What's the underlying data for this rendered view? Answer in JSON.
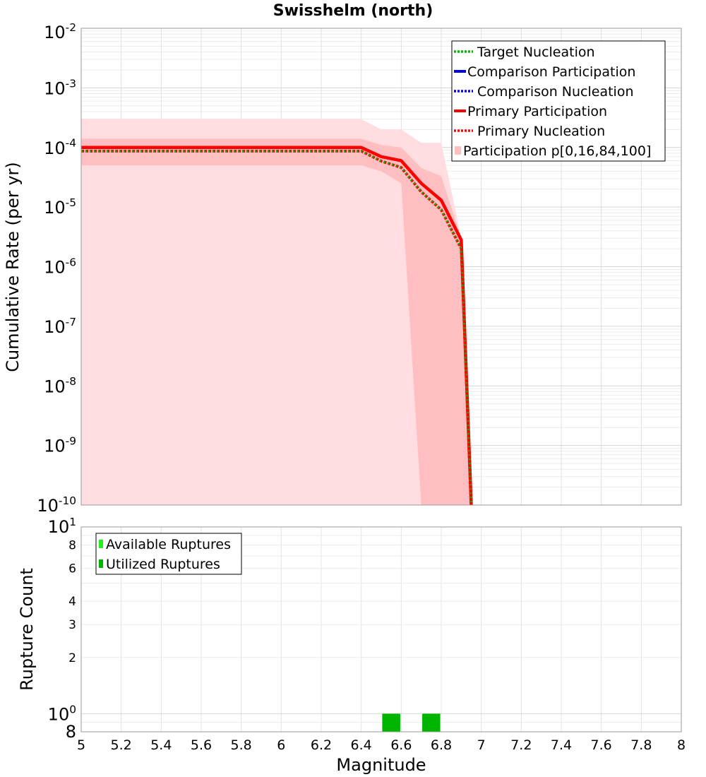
{
  "chart_data": [
    {
      "type": "line",
      "title": "Swisshelm (north)",
      "xlabel": "",
      "ylabel": "Cumulative Rate (per yr)",
      "xlim": [
        5,
        8
      ],
      "ylim": [
        1e-10,
        0.01
      ],
      "yscale": "log",
      "grid": true,
      "legend_position": "top-right",
      "y_tick_labels": [
        {
          "base": "10",
          "exp": "-2"
        },
        {
          "base": "10",
          "exp": "-3"
        },
        {
          "base": "10",
          "exp": "-4"
        },
        {
          "base": "10",
          "exp": "-5"
        },
        {
          "base": "10",
          "exp": "-6"
        },
        {
          "base": "10",
          "exp": "-7"
        },
        {
          "base": "10",
          "exp": "-8"
        },
        {
          "base": "10",
          "exp": "-9"
        },
        {
          "base": "10",
          "exp": "-10"
        }
      ],
      "legend": [
        {
          "label": "Target Nucleation",
          "color": "#00bb00",
          "style": "dotted"
        },
        {
          "label": "Comparison Participation",
          "color": "#0000ee",
          "style": "solid"
        },
        {
          "label": "Comparison Nucleation",
          "color": "#0000ee",
          "style": "dotted"
        },
        {
          "label": "Primary Participation",
          "color": "#ff0000",
          "style": "solid"
        },
        {
          "label": "Primary Nucleation",
          "color": "#ff0000",
          "style": "dotted"
        },
        {
          "label": "Participation p[0,16,84,100]",
          "color": "#ffc0c0",
          "style": "band"
        }
      ],
      "series": [
        {
          "name": "Primary Participation",
          "color": "#ff0000",
          "x": [
            5.0,
            6.4,
            6.5,
            6.6,
            6.7,
            6.8,
            6.9,
            6.95
          ],
          "y": [
            0.0001,
            0.0001,
            7e-05,
            6e-05,
            2.5e-05,
            1.3e-05,
            2.8e-06,
            1e-10
          ]
        },
        {
          "name": "Primary Nucleation",
          "color": "#ff0000",
          "x": [
            5.0,
            6.4,
            6.5,
            6.6,
            6.7,
            6.8,
            6.9,
            6.95
          ],
          "y": [
            8.7e-05,
            8.7e-05,
            5.9e-05,
            4.6e-05,
            1.8e-05,
            9e-06,
            2e-06,
            1e-10
          ]
        },
        {
          "name": "Target Nucleation",
          "color": "#00bb00",
          "x": [
            5.0,
            6.4,
            6.5,
            6.6,
            6.7,
            6.8,
            6.9,
            6.95
          ],
          "y": [
            8.7e-05,
            8.7e-05,
            5.9e-05,
            4.6e-05,
            1.8e-05,
            9e-06,
            2e-06,
            1e-10
          ]
        }
      ],
      "bands": [
        {
          "name": "Participation p[0,100]",
          "color": "#ffdde0",
          "x": [
            5.0,
            6.4,
            6.5,
            6.6,
            6.7,
            6.8,
            6.9,
            6.95
          ],
          "lower": [
            1e-10,
            1e-10,
            1e-10,
            1e-10,
            1e-10,
            1e-10,
            1e-10,
            1e-10
          ],
          "upper": [
            0.0003,
            0.0003,
            0.0002,
            0.0002,
            0.00012,
            0.00012,
            3e-06,
            1e-10
          ]
        },
        {
          "name": "Participation p[16,84]",
          "color": "#ffbfc2",
          "x": [
            5.0,
            6.4,
            6.5,
            6.6,
            6.7,
            6.8,
            6.9,
            6.95
          ],
          "lower": [
            5e-05,
            5e-05,
            4e-05,
            2.5e-05,
            1e-10,
            1e-10,
            1e-10,
            1e-10
          ],
          "upper": [
            0.00014,
            0.00014,
            0.00011,
            0.0001,
            4.5e-05,
            3.3e-05,
            3e-06,
            1e-10
          ]
        }
      ]
    },
    {
      "type": "bar",
      "title": "",
      "xlabel": "Magnitude",
      "ylabel": "Rupture Count",
      "xlim": [
        5,
        8
      ],
      "ylim": [
        0.8,
        10
      ],
      "yscale": "log",
      "grid": true,
      "legend_position": "top-left",
      "x_ticks": [
        "5",
        "5.2",
        "5.4",
        "5.6",
        "5.8",
        "6",
        "6.2",
        "6.4",
        "6.6",
        "6.8",
        "7",
        "7.2",
        "7.4",
        "7.6",
        "7.8",
        "8"
      ],
      "y_tick_labels": [
        {
          "value": 10,
          "base": "10",
          "exp": "1"
        },
        {
          "value": 8,
          "base": "8",
          "exp": ""
        },
        {
          "value": 6,
          "base": "6",
          "exp": ""
        },
        {
          "value": 4,
          "base": "4",
          "exp": ""
        },
        {
          "value": 3,
          "base": "3",
          "exp": ""
        },
        {
          "value": 2,
          "base": "2",
          "exp": ""
        },
        {
          "value": 1,
          "base": "10",
          "exp": "0"
        },
        {
          "value": 0.8,
          "base": "8",
          "exp": ""
        }
      ],
      "legend": [
        {
          "label": "Available Ruptures",
          "color": "#22ee22"
        },
        {
          "label": "Utilized Ruptures",
          "color": "#00b400"
        }
      ],
      "series": [
        {
          "name": "Utilized Ruptures",
          "color": "#00b400",
          "x": [
            6.55,
            6.75
          ],
          "values": [
            1,
            1
          ],
          "bin_width": 0.09
        }
      ]
    }
  ]
}
